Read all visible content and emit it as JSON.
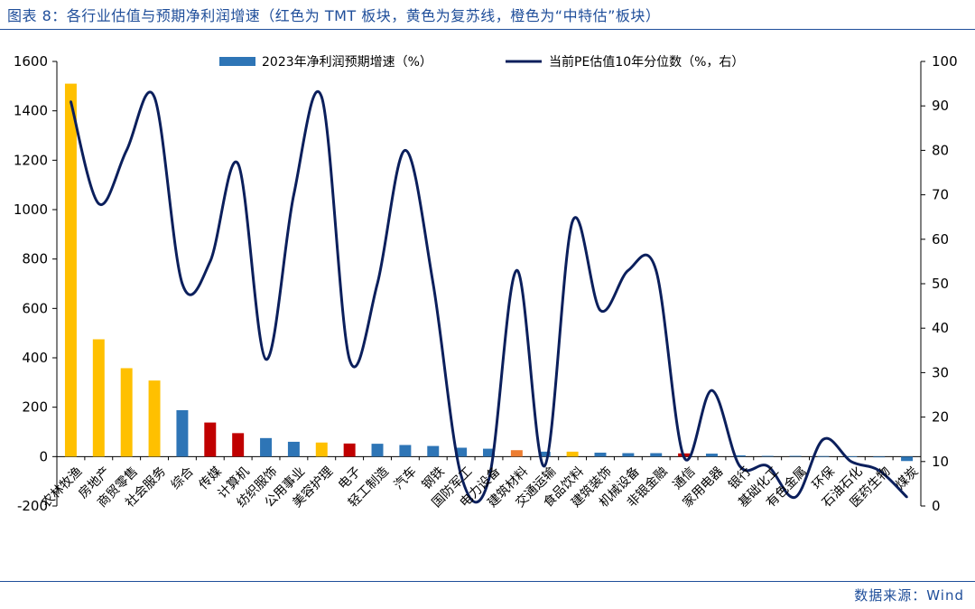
{
  "title": "图表 8：各行业估值与预期净利润增速（红色为 TMT 板块，黄色为复苏线，橙色为“中特估”板块）",
  "source": "数据来源：Wind",
  "chart_data": {
    "type": "bar+line",
    "categories": [
      "农林牧渔",
      "房地产",
      "商贸零售",
      "社会服务",
      "综合",
      "传媒",
      "计算机",
      "纺织服饰",
      "公用事业",
      "美容护理",
      "电子",
      "轻工制造",
      "汽车",
      "钢铁",
      "国防军工",
      "电力设备",
      "建筑材料",
      "交通运输",
      "食品饮料",
      "建筑装饰",
      "机械设备",
      "非银金融",
      "通信",
      "家用电器",
      "银行",
      "基础化工",
      "有色金属",
      "环保",
      "石油石化",
      "医药生物",
      "煤炭"
    ],
    "series": [
      {
        "name": "2023年净利润预期增速（%）",
        "kind": "bar",
        "axis": "left",
        "values": [
          1510,
          475,
          358,
          308,
          188,
          138,
          95,
          75,
          60,
          57,
          53,
          52,
          47,
          43,
          36,
          32,
          26,
          20,
          20,
          16,
          14,
          14,
          13,
          12,
          5,
          3,
          3,
          2,
          1,
          -3,
          -18
        ],
        "colors": [
          "#FFC000",
          "#FFC000",
          "#FFC000",
          "#FFC000",
          "#2E75B6",
          "#C00000",
          "#C00000",
          "#2E75B6",
          "#2E75B6",
          "#FFC000",
          "#C00000",
          "#2E75B6",
          "#2E75B6",
          "#2E75B6",
          "#2E75B6",
          "#2E75B6",
          "#ED7D31",
          "#2E75B6",
          "#FFC000",
          "#2E75B6",
          "#2E75B6",
          "#2E75B6",
          "#C00000",
          "#2E75B6",
          "#2E75B6",
          "#2E75B6",
          "#2E75B6",
          "#2E75B6",
          "#2E75B6",
          "#2E75B6",
          "#2E75B6"
        ]
      },
      {
        "name": "当前PE估值10年分位数（%，右）",
        "kind": "line",
        "axis": "right",
        "color": "#0B1F5C",
        "values": [
          91,
          68,
          80,
          92,
          50,
          55,
          77,
          33,
          70,
          92,
          33,
          50,
          80,
          50,
          7,
          6,
          53,
          9,
          64,
          44,
          53,
          53,
          11,
          26,
          9,
          9,
          2,
          15,
          10,
          8,
          2
        ]
      }
    ],
    "y_left": {
      "min": -200,
      "max": 1600,
      "ticks": [
        -200,
        0,
        200,
        400,
        600,
        800,
        1000,
        1200,
        1400,
        1600
      ]
    },
    "y_right": {
      "min": 0,
      "max": 100,
      "ticks": [
        0,
        10,
        20,
        30,
        40,
        50,
        60,
        70,
        80,
        90,
        100
      ]
    },
    "legend_position": "top"
  }
}
